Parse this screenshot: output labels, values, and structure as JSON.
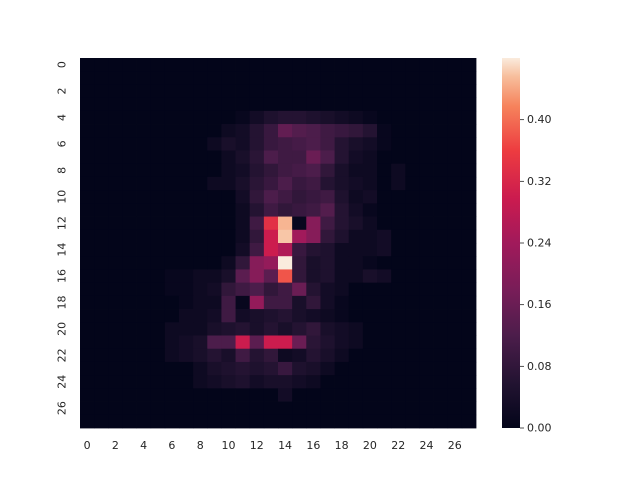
{
  "chart_data": {
    "type": "heatmap",
    "title": "",
    "xlabel": "",
    "ylabel": "",
    "rows": 28,
    "cols": 28,
    "x_tick_labels": [
      "0",
      "2",
      "4",
      "6",
      "8",
      "10",
      "12",
      "14",
      "16",
      "18",
      "20",
      "22",
      "24",
      "26"
    ],
    "y_tick_labels": [
      "0",
      "2",
      "4",
      "6",
      "8",
      "10",
      "12",
      "14",
      "16",
      "18",
      "20",
      "22",
      "24",
      "26"
    ],
    "colorbar": {
      "vmin": 0.0,
      "vmax": 0.48,
      "ticks": [
        0.0,
        0.08,
        0.16,
        0.24,
        0.32,
        0.4
      ],
      "tick_labels": [
        "0.00",
        "0.08",
        "0.16",
        "0.24",
        "0.32",
        "0.40"
      ]
    },
    "colormap": "rocket",
    "cells": [
      {
        "r": 4,
        "c": 11,
        "v": 0.01
      },
      {
        "r": 4,
        "c": 12,
        "v": 0.03
      },
      {
        "r": 4,
        "c": 13,
        "v": 0.05
      },
      {
        "r": 4,
        "c": 14,
        "v": 0.06
      },
      {
        "r": 4,
        "c": 15,
        "v": 0.06
      },
      {
        "r": 4,
        "c": 16,
        "v": 0.05
      },
      {
        "r": 4,
        "c": 17,
        "v": 0.04
      },
      {
        "r": 4,
        "c": 18,
        "v": 0.03
      },
      {
        "r": 4,
        "c": 19,
        "v": 0.02
      },
      {
        "r": 4,
        "c": 20,
        "v": 0.01
      },
      {
        "r": 5,
        "c": 10,
        "v": 0.02
      },
      {
        "r": 5,
        "c": 11,
        "v": 0.03
      },
      {
        "r": 5,
        "c": 12,
        "v": 0.06
      },
      {
        "r": 5,
        "c": 13,
        "v": 0.09
      },
      {
        "r": 5,
        "c": 14,
        "v": 0.15
      },
      {
        "r": 5,
        "c": 15,
        "v": 0.13
      },
      {
        "r": 5,
        "c": 16,
        "v": 0.12
      },
      {
        "r": 5,
        "c": 17,
        "v": 0.1
      },
      {
        "r": 5,
        "c": 18,
        "v": 0.09
      },
      {
        "r": 5,
        "c": 19,
        "v": 0.08
      },
      {
        "r": 5,
        "c": 20,
        "v": 0.06
      },
      {
        "r": 5,
        "c": 21,
        "v": 0.01
      },
      {
        "r": 6,
        "c": 9,
        "v": 0.02
      },
      {
        "r": 6,
        "c": 10,
        "v": 0.04
      },
      {
        "r": 6,
        "c": 11,
        "v": 0.03
      },
      {
        "r": 6,
        "c": 12,
        "v": 0.06
      },
      {
        "r": 6,
        "c": 13,
        "v": 0.09
      },
      {
        "r": 6,
        "c": 14,
        "v": 0.1
      },
      {
        "r": 6,
        "c": 15,
        "v": 0.11
      },
      {
        "r": 6,
        "c": 16,
        "v": 0.12
      },
      {
        "r": 6,
        "c": 17,
        "v": 0.1
      },
      {
        "r": 6,
        "c": 18,
        "v": 0.06
      },
      {
        "r": 6,
        "c": 19,
        "v": 0.04
      },
      {
        "r": 6,
        "c": 20,
        "v": 0.03
      },
      {
        "r": 6,
        "c": 21,
        "v": 0.01
      },
      {
        "r": 7,
        "c": 10,
        "v": 0.02
      },
      {
        "r": 7,
        "c": 11,
        "v": 0.04
      },
      {
        "r": 7,
        "c": 12,
        "v": 0.07
      },
      {
        "r": 7,
        "c": 13,
        "v": 0.12
      },
      {
        "r": 7,
        "c": 14,
        "v": 0.1
      },
      {
        "r": 7,
        "c": 15,
        "v": 0.1
      },
      {
        "r": 7,
        "c": 16,
        "v": 0.16
      },
      {
        "r": 7,
        "c": 17,
        "v": 0.12
      },
      {
        "r": 7,
        "c": 18,
        "v": 0.06
      },
      {
        "r": 7,
        "c": 19,
        "v": 0.03
      },
      {
        "r": 7,
        "c": 20,
        "v": 0.02
      },
      {
        "r": 8,
        "c": 10,
        "v": 0.02
      },
      {
        "r": 8,
        "c": 11,
        "v": 0.03
      },
      {
        "r": 8,
        "c": 12,
        "v": 0.06
      },
      {
        "r": 8,
        "c": 13,
        "v": 0.08
      },
      {
        "r": 8,
        "c": 14,
        "v": 0.1
      },
      {
        "r": 8,
        "c": 15,
        "v": 0.11
      },
      {
        "r": 8,
        "c": 16,
        "v": 0.12
      },
      {
        "r": 8,
        "c": 17,
        "v": 0.08
      },
      {
        "r": 8,
        "c": 18,
        "v": 0.04
      },
      {
        "r": 8,
        "c": 19,
        "v": 0.02
      },
      {
        "r": 8,
        "c": 20,
        "v": 0.02
      },
      {
        "r": 8,
        "c": 22,
        "v": 0.02
      },
      {
        "r": 9,
        "c": 9,
        "v": 0.02
      },
      {
        "r": 9,
        "c": 10,
        "v": 0.02
      },
      {
        "r": 9,
        "c": 11,
        "v": 0.04
      },
      {
        "r": 9,
        "c": 12,
        "v": 0.07
      },
      {
        "r": 9,
        "c": 13,
        "v": 0.09
      },
      {
        "r": 9,
        "c": 14,
        "v": 0.12
      },
      {
        "r": 9,
        "c": 15,
        "v": 0.09
      },
      {
        "r": 9,
        "c": 16,
        "v": 0.1
      },
      {
        "r": 9,
        "c": 17,
        "v": 0.06
      },
      {
        "r": 9,
        "c": 18,
        "v": 0.04
      },
      {
        "r": 9,
        "c": 19,
        "v": 0.03
      },
      {
        "r": 9,
        "c": 20,
        "v": 0.02
      },
      {
        "r": 9,
        "c": 22,
        "v": 0.02
      },
      {
        "r": 10,
        "c": 11,
        "v": 0.03
      },
      {
        "r": 10,
        "c": 12,
        "v": 0.08
      },
      {
        "r": 10,
        "c": 13,
        "v": 0.12
      },
      {
        "r": 10,
        "c": 14,
        "v": 0.1
      },
      {
        "r": 10,
        "c": 15,
        "v": 0.08
      },
      {
        "r": 10,
        "c": 16,
        "v": 0.09
      },
      {
        "r": 10,
        "c": 17,
        "v": 0.1
      },
      {
        "r": 10,
        "c": 18,
        "v": 0.05
      },
      {
        "r": 10,
        "c": 19,
        "v": 0.02
      },
      {
        "r": 10,
        "c": 20,
        "v": 0.03
      },
      {
        "r": 11,
        "c": 11,
        "v": 0.02
      },
      {
        "r": 11,
        "c": 12,
        "v": 0.06
      },
      {
        "r": 11,
        "c": 13,
        "v": 0.1
      },
      {
        "r": 11,
        "c": 14,
        "v": 0.08
      },
      {
        "r": 11,
        "c": 15,
        "v": 0.09
      },
      {
        "r": 11,
        "c": 16,
        "v": 0.1
      },
      {
        "r": 11,
        "c": 17,
        "v": 0.13
      },
      {
        "r": 11,
        "c": 18,
        "v": 0.06
      },
      {
        "r": 11,
        "c": 19,
        "v": 0.03
      },
      {
        "r": 11,
        "c": 20,
        "v": 0.01
      },
      {
        "r": 12,
        "c": 11,
        "v": 0.02
      },
      {
        "r": 12,
        "c": 12,
        "v": 0.1
      },
      {
        "r": 12,
        "c": 13,
        "v": 0.34
      },
      {
        "r": 12,
        "c": 14,
        "v": 0.45
      },
      {
        "r": 12,
        "c": 15,
        "v": 0.01
      },
      {
        "r": 12,
        "c": 16,
        "v": 0.2
      },
      {
        "r": 12,
        "c": 17,
        "v": 0.1
      },
      {
        "r": 12,
        "c": 18,
        "v": 0.06
      },
      {
        "r": 12,
        "c": 19,
        "v": 0.04
      },
      {
        "r": 12,
        "c": 20,
        "v": 0.02
      },
      {
        "r": 13,
        "c": 11,
        "v": 0.02
      },
      {
        "r": 13,
        "c": 12,
        "v": 0.08
      },
      {
        "r": 13,
        "c": 13,
        "v": 0.3
      },
      {
        "r": 13,
        "c": 14,
        "v": 0.46
      },
      {
        "r": 13,
        "c": 15,
        "v": 0.24
      },
      {
        "r": 13,
        "c": 16,
        "v": 0.2
      },
      {
        "r": 13,
        "c": 17,
        "v": 0.08
      },
      {
        "r": 13,
        "c": 18,
        "v": 0.05
      },
      {
        "r": 13,
        "c": 19,
        "v": 0.02
      },
      {
        "r": 13,
        "c": 20,
        "v": 0.02
      },
      {
        "r": 13,
        "c": 21,
        "v": 0.03
      },
      {
        "r": 14,
        "c": 11,
        "v": 0.03
      },
      {
        "r": 14,
        "c": 12,
        "v": 0.1
      },
      {
        "r": 14,
        "c": 13,
        "v": 0.3
      },
      {
        "r": 14,
        "c": 14,
        "v": 0.26
      },
      {
        "r": 14,
        "c": 15,
        "v": 0.09
      },
      {
        "r": 14,
        "c": 16,
        "v": 0.06
      },
      {
        "r": 14,
        "c": 17,
        "v": 0.05
      },
      {
        "r": 14,
        "c": 18,
        "v": 0.02
      },
      {
        "r": 14,
        "c": 19,
        "v": 0.02
      },
      {
        "r": 14,
        "c": 20,
        "v": 0.02
      },
      {
        "r": 14,
        "c": 21,
        "v": 0.03
      },
      {
        "r": 15,
        "c": 10,
        "v": 0.02
      },
      {
        "r": 15,
        "c": 11,
        "v": 0.08
      },
      {
        "r": 15,
        "c": 12,
        "v": 0.2
      },
      {
        "r": 15,
        "c": 13,
        "v": 0.22
      },
      {
        "r": 15,
        "c": 14,
        "v": 0.48
      },
      {
        "r": 15,
        "c": 15,
        "v": 0.08
      },
      {
        "r": 15,
        "c": 16,
        "v": 0.04
      },
      {
        "r": 15,
        "c": 17,
        "v": 0.05
      },
      {
        "r": 15,
        "c": 18,
        "v": 0.02
      },
      {
        "r": 15,
        "c": 19,
        "v": 0.02
      },
      {
        "r": 15,
        "c": 20,
        "v": 0.01
      },
      {
        "r": 16,
        "c": 6,
        "v": 0.01
      },
      {
        "r": 16,
        "c": 7,
        "v": 0.01
      },
      {
        "r": 16,
        "c": 8,
        "v": 0.02
      },
      {
        "r": 16,
        "c": 9,
        "v": 0.02
      },
      {
        "r": 16,
        "c": 10,
        "v": 0.04
      },
      {
        "r": 16,
        "c": 11,
        "v": 0.14
      },
      {
        "r": 16,
        "c": 12,
        "v": 0.2
      },
      {
        "r": 16,
        "c": 13,
        "v": 0.14
      },
      {
        "r": 16,
        "c": 14,
        "v": 0.38
      },
      {
        "r": 16,
        "c": 15,
        "v": 0.08
      },
      {
        "r": 16,
        "c": 16,
        "v": 0.04
      },
      {
        "r": 16,
        "c": 17,
        "v": 0.05
      },
      {
        "r": 16,
        "c": 18,
        "v": 0.02
      },
      {
        "r": 16,
        "c": 19,
        "v": 0.02
      },
      {
        "r": 16,
        "c": 20,
        "v": 0.04
      },
      {
        "r": 16,
        "c": 21,
        "v": 0.03
      },
      {
        "r": 17,
        "c": 6,
        "v": 0.01
      },
      {
        "r": 17,
        "c": 7,
        "v": 0.01
      },
      {
        "r": 17,
        "c": 8,
        "v": 0.02
      },
      {
        "r": 17,
        "c": 9,
        "v": 0.03
      },
      {
        "r": 17,
        "c": 10,
        "v": 0.08
      },
      {
        "r": 17,
        "c": 11,
        "v": 0.1
      },
      {
        "r": 17,
        "c": 12,
        "v": 0.12
      },
      {
        "r": 17,
        "c": 13,
        "v": 0.08
      },
      {
        "r": 17,
        "c": 14,
        "v": 0.1
      },
      {
        "r": 17,
        "c": 15,
        "v": 0.16
      },
      {
        "r": 17,
        "c": 16,
        "v": 0.06
      },
      {
        "r": 17,
        "c": 17,
        "v": 0.03
      },
      {
        "r": 17,
        "c": 18,
        "v": 0.02
      },
      {
        "r": 18,
        "c": 7,
        "v": 0.01
      },
      {
        "r": 18,
        "c": 8,
        "v": 0.02
      },
      {
        "r": 18,
        "c": 9,
        "v": 0.02
      },
      {
        "r": 18,
        "c": 10,
        "v": 0.1
      },
      {
        "r": 18,
        "c": 11,
        "v": 0.01
      },
      {
        "r": 18,
        "c": 12,
        "v": 0.22
      },
      {
        "r": 18,
        "c": 13,
        "v": 0.1
      },
      {
        "r": 18,
        "c": 14,
        "v": 0.1
      },
      {
        "r": 18,
        "c": 15,
        "v": 0.04
      },
      {
        "r": 18,
        "c": 16,
        "v": 0.08
      },
      {
        "r": 18,
        "c": 17,
        "v": 0.03
      },
      {
        "r": 18,
        "c": 18,
        "v": 0.01
      },
      {
        "r": 19,
        "c": 7,
        "v": 0.02
      },
      {
        "r": 19,
        "c": 8,
        "v": 0.02
      },
      {
        "r": 19,
        "c": 9,
        "v": 0.03
      },
      {
        "r": 19,
        "c": 10,
        "v": 0.1
      },
      {
        "r": 19,
        "c": 11,
        "v": 0.03
      },
      {
        "r": 19,
        "c": 12,
        "v": 0.04
      },
      {
        "r": 19,
        "c": 13,
        "v": 0.05
      },
      {
        "r": 19,
        "c": 14,
        "v": 0.06
      },
      {
        "r": 19,
        "c": 15,
        "v": 0.04
      },
      {
        "r": 19,
        "c": 16,
        "v": 0.03
      },
      {
        "r": 19,
        "c": 17,
        "v": 0.02
      },
      {
        "r": 19,
        "c": 18,
        "v": 0.01
      },
      {
        "r": 20,
        "c": 6,
        "v": 0.02
      },
      {
        "r": 20,
        "c": 7,
        "v": 0.02
      },
      {
        "r": 20,
        "c": 8,
        "v": 0.02
      },
      {
        "r": 20,
        "c": 9,
        "v": 0.04
      },
      {
        "r": 20,
        "c": 10,
        "v": 0.05
      },
      {
        "r": 20,
        "c": 11,
        "v": 0.06
      },
      {
        "r": 20,
        "c": 12,
        "v": 0.04
      },
      {
        "r": 20,
        "c": 13,
        "v": 0.06
      },
      {
        "r": 20,
        "c": 14,
        "v": 0.04
      },
      {
        "r": 20,
        "c": 15,
        "v": 0.06
      },
      {
        "r": 20,
        "c": 16,
        "v": 0.08
      },
      {
        "r": 20,
        "c": 17,
        "v": 0.04
      },
      {
        "r": 20,
        "c": 18,
        "v": 0.03
      },
      {
        "r": 20,
        "c": 19,
        "v": 0.02
      },
      {
        "r": 21,
        "c": 6,
        "v": 0.02
      },
      {
        "r": 21,
        "c": 7,
        "v": 0.03
      },
      {
        "r": 21,
        "c": 8,
        "v": 0.04
      },
      {
        "r": 21,
        "c": 9,
        "v": 0.12
      },
      {
        "r": 21,
        "c": 10,
        "v": 0.12
      },
      {
        "r": 21,
        "c": 11,
        "v": 0.3
      },
      {
        "r": 21,
        "c": 12,
        "v": 0.14
      },
      {
        "r": 21,
        "c": 13,
        "v": 0.3
      },
      {
        "r": 21,
        "c": 14,
        "v": 0.3
      },
      {
        "r": 21,
        "c": 15,
        "v": 0.16
      },
      {
        "r": 21,
        "c": 16,
        "v": 0.07
      },
      {
        "r": 21,
        "c": 17,
        "v": 0.05
      },
      {
        "r": 21,
        "c": 18,
        "v": 0.03
      },
      {
        "r": 21,
        "c": 19,
        "v": 0.02
      },
      {
        "r": 22,
        "c": 6,
        "v": 0.02
      },
      {
        "r": 22,
        "c": 7,
        "v": 0.03
      },
      {
        "r": 22,
        "c": 8,
        "v": 0.04
      },
      {
        "r": 22,
        "c": 9,
        "v": 0.06
      },
      {
        "r": 22,
        "c": 10,
        "v": 0.04
      },
      {
        "r": 22,
        "c": 11,
        "v": 0.1
      },
      {
        "r": 22,
        "c": 12,
        "v": 0.06
      },
      {
        "r": 22,
        "c": 13,
        "v": 0.08
      },
      {
        "r": 22,
        "c": 14,
        "v": 0.02
      },
      {
        "r": 22,
        "c": 15,
        "v": 0.03
      },
      {
        "r": 22,
        "c": 16,
        "v": 0.06
      },
      {
        "r": 22,
        "c": 17,
        "v": 0.04
      },
      {
        "r": 22,
        "c": 18,
        "v": 0.02
      },
      {
        "r": 23,
        "c": 8,
        "v": 0.02
      },
      {
        "r": 23,
        "c": 9,
        "v": 0.04
      },
      {
        "r": 23,
        "c": 10,
        "v": 0.05
      },
      {
        "r": 23,
        "c": 11,
        "v": 0.06
      },
      {
        "r": 23,
        "c": 12,
        "v": 0.05
      },
      {
        "r": 23,
        "c": 13,
        "v": 0.06
      },
      {
        "r": 23,
        "c": 14,
        "v": 0.09
      },
      {
        "r": 23,
        "c": 15,
        "v": 0.05
      },
      {
        "r": 23,
        "c": 16,
        "v": 0.04
      },
      {
        "r": 23,
        "c": 17,
        "v": 0.02
      },
      {
        "r": 24,
        "c": 8,
        "v": 0.02
      },
      {
        "r": 24,
        "c": 9,
        "v": 0.03
      },
      {
        "r": 24,
        "c": 10,
        "v": 0.04
      },
      {
        "r": 24,
        "c": 11,
        "v": 0.05
      },
      {
        "r": 24,
        "c": 12,
        "v": 0.03
      },
      {
        "r": 24,
        "c": 13,
        "v": 0.04
      },
      {
        "r": 24,
        "c": 14,
        "v": 0.04
      },
      {
        "r": 24,
        "c": 15,
        "v": 0.03
      },
      {
        "r": 24,
        "c": 16,
        "v": 0.02
      },
      {
        "r": 25,
        "c": 14,
        "v": 0.03
      }
    ]
  }
}
